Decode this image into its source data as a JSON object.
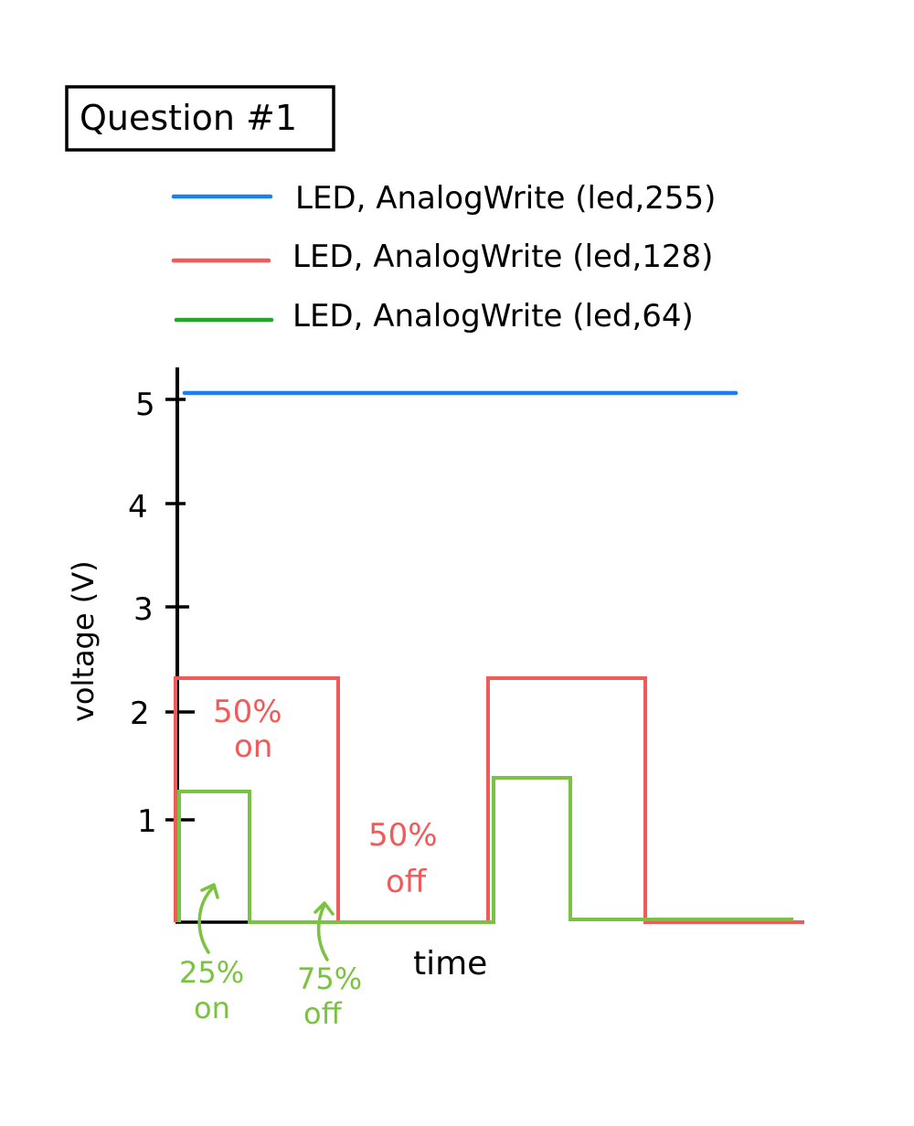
{
  "title": "Question #1",
  "legend": [
    {
      "label": "LED, AnalogWrite (led,255)",
      "color": "#1a7ff0"
    },
    {
      "label": "LED, AnalogWrite (led,128)",
      "color": "#f25a5a"
    },
    {
      "label": "LED, AnalogWrite (led,64)",
      "color": "#22a829"
    }
  ],
  "axes": {
    "ylabel": "voltage (V)",
    "xlabel": "time",
    "yticks": [
      "5",
      "4",
      "3",
      "2",
      "1"
    ]
  },
  "annotations": {
    "red_on_line1": "50%",
    "red_on_line2": "on",
    "red_off_line1": "50%",
    "red_off_line2": "off",
    "green_on_line1": "25%",
    "green_on_line2": "on",
    "green_off_line1": "75%",
    "green_off_line2": "off"
  },
  "colors": {
    "blue": "#1a7ff0",
    "red": "#f25a5a",
    "green": "#7cc242",
    "black": "#000000"
  }
}
